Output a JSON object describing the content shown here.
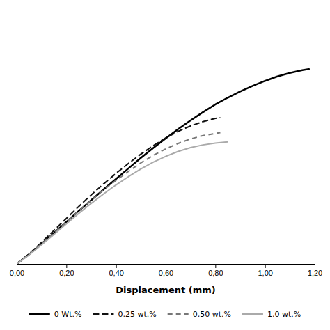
{
  "chart_data": {
    "type": "line",
    "x_label": "Displacement (mm)",
    "xlim": [
      0.0,
      1.2
    ],
    "ylim": [
      0.0,
      1.0
    ],
    "xticks": [
      {
        "value": 0.0,
        "label": "0,00"
      },
      {
        "value": 0.2,
        "label": "0,20"
      },
      {
        "value": 0.4,
        "label": "0,40"
      },
      {
        "value": 0.6,
        "label": "0,60"
      },
      {
        "value": 0.8,
        "label": "0,80"
      },
      {
        "value": 1.0,
        "label": "1,00"
      },
      {
        "value": 1.2,
        "label": "1,20"
      }
    ],
    "tick_labels": "x",
    "legend": "bottom",
    "series": [
      {
        "name": "0 Wt.%",
        "color": "#000000",
        "line_style": "solid",
        "x": [
          0.0,
          0.05,
          0.1,
          0.15,
          0.2,
          0.25,
          0.3,
          0.35,
          0.4,
          0.45,
          0.5,
          0.55,
          0.6,
          0.65,
          0.7,
          0.75,
          0.8,
          0.85,
          0.9,
          0.95,
          1.0,
          1.05,
          1.1,
          1.15,
          1.18
        ],
        "values": [
          0.0,
          0.038,
          0.08,
          0.124,
          0.168,
          0.212,
          0.255,
          0.298,
          0.34,
          0.382,
          0.424,
          0.464,
          0.502,
          0.539,
          0.574,
          0.607,
          0.638,
          0.665,
          0.69,
          0.712,
          0.732,
          0.75,
          0.764,
          0.775,
          0.78
        ]
      },
      {
        "name": "0,25 wt.%",
        "color": "#111111",
        "line_style": "dashed",
        "x": [
          0.0,
          0.05,
          0.1,
          0.15,
          0.2,
          0.25,
          0.3,
          0.35,
          0.4,
          0.45,
          0.5,
          0.55,
          0.6,
          0.65,
          0.7,
          0.75,
          0.8,
          0.82
        ],
        "values": [
          0.0,
          0.04,
          0.086,
          0.134,
          0.182,
          0.23,
          0.276,
          0.32,
          0.362,
          0.402,
          0.439,
          0.473,
          0.504,
          0.53,
          0.552,
          0.569,
          0.582,
          0.585
        ]
      },
      {
        "name": "0,50 wt.%",
        "color": "#777777",
        "line_style": "dashed",
        "x": [
          0.0,
          0.05,
          0.1,
          0.15,
          0.2,
          0.25,
          0.3,
          0.35,
          0.4,
          0.45,
          0.5,
          0.55,
          0.6,
          0.65,
          0.7,
          0.75,
          0.8,
          0.82
        ],
        "values": [
          0.0,
          0.038,
          0.08,
          0.124,
          0.168,
          0.212,
          0.255,
          0.296,
          0.334,
          0.37,
          0.404,
          0.434,
          0.46,
          0.482,
          0.5,
          0.513,
          0.522,
          0.525
        ]
      },
      {
        "name": "1,0 wt.%",
        "color": "#aaaaaa",
        "line_style": "solid",
        "x": [
          0.0,
          0.05,
          0.1,
          0.15,
          0.2,
          0.25,
          0.3,
          0.35,
          0.4,
          0.45,
          0.5,
          0.55,
          0.6,
          0.65,
          0.7,
          0.75,
          0.8,
          0.85
        ],
        "values": [
          0.0,
          0.036,
          0.076,
          0.118,
          0.16,
          0.202,
          0.242,
          0.28,
          0.316,
          0.349,
          0.38,
          0.407,
          0.43,
          0.45,
          0.465,
          0.476,
          0.483,
          0.488
        ]
      }
    ]
  }
}
